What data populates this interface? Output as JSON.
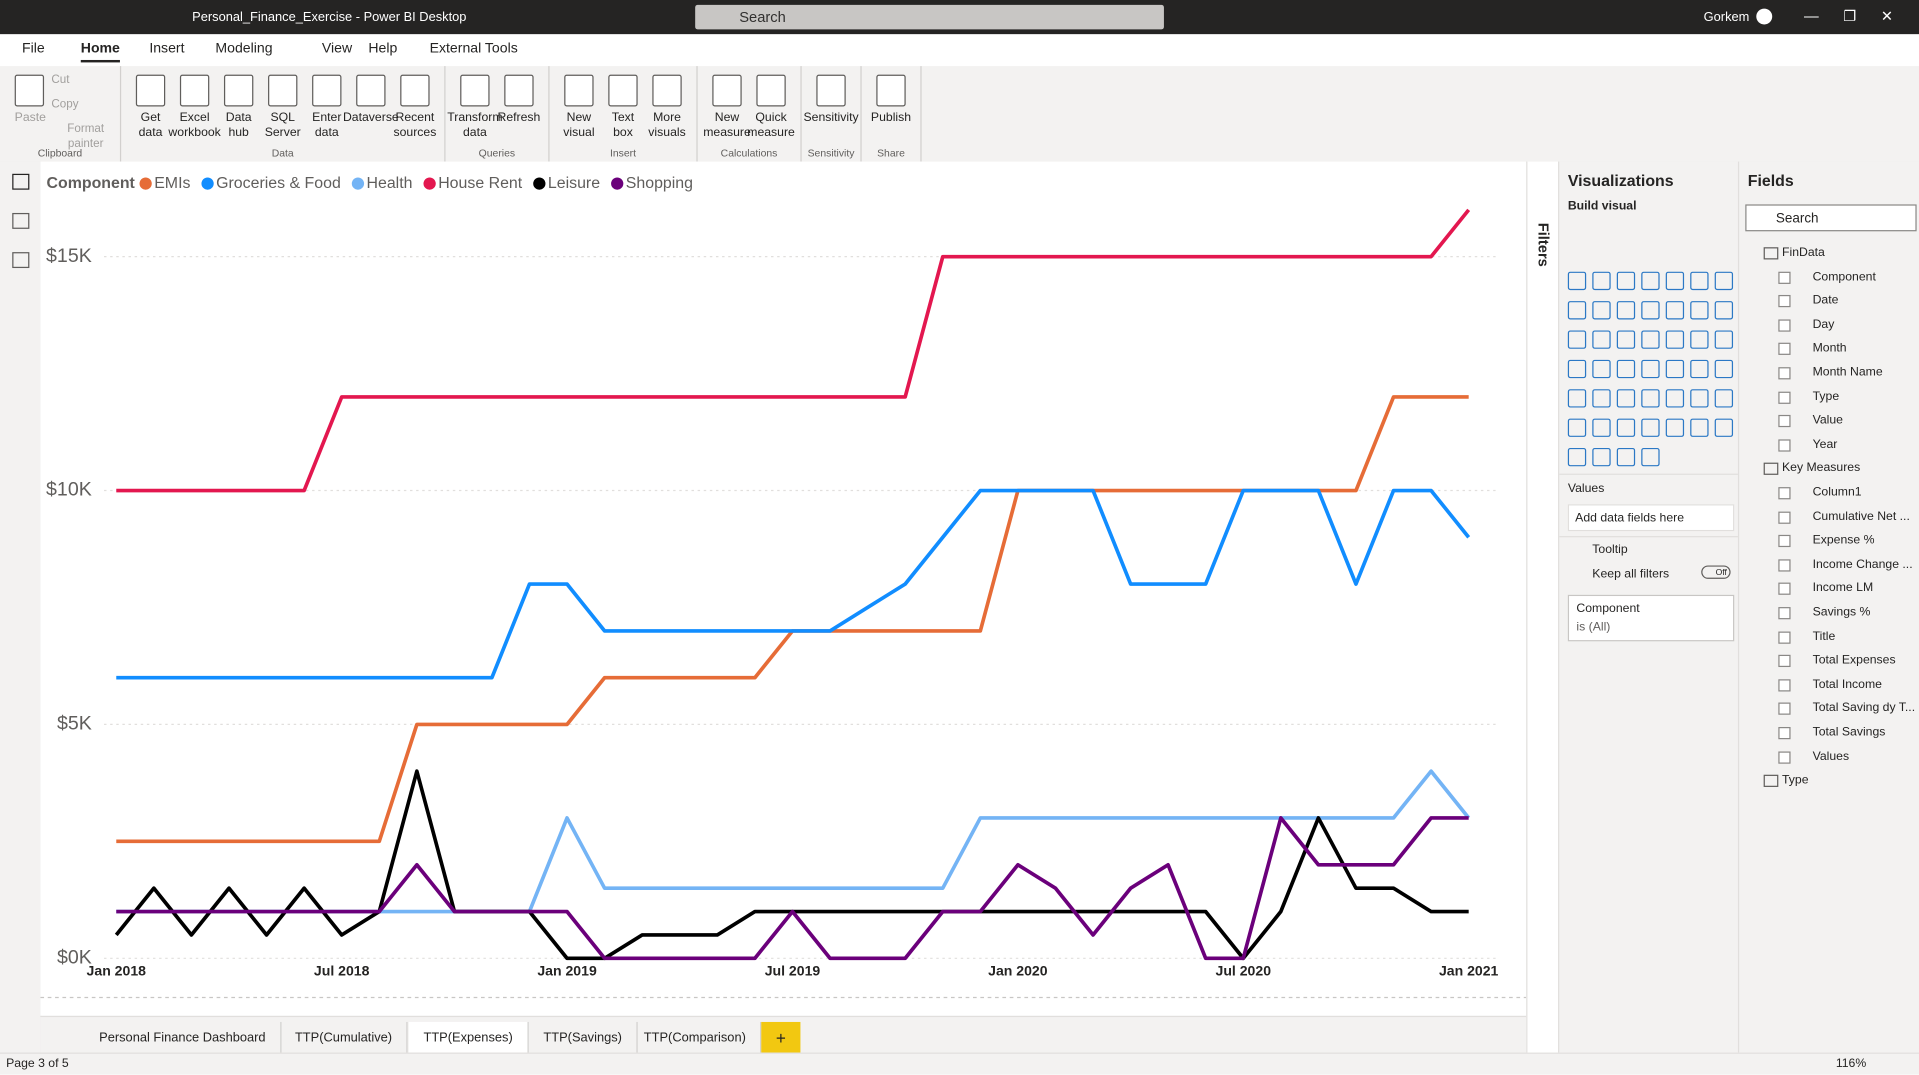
{
  "window": {
    "title": "Personal_Finance_Exercise - Power BI Desktop",
    "search": "Search",
    "user": "Gorkem"
  },
  "menu": [
    "File",
    "Home",
    "Insert",
    "Modeling",
    "View",
    "Help",
    "External Tools"
  ],
  "active_menu": 1,
  "ribbon": [
    {
      "name": "Clipboard",
      "buttons": [
        "Paste",
        "Cut",
        "Copy",
        "Format painter"
      ]
    },
    {
      "name": "Data",
      "buttons": [
        "Get data",
        "Excel workbook",
        "Data hub",
        "SQL Server",
        "Enter data",
        "Dataverse",
        "Recent sources"
      ]
    },
    {
      "name": "Queries",
      "buttons": [
        "Transform data",
        "Refresh"
      ]
    },
    {
      "name": "Insert",
      "buttons": [
        "New visual",
        "Text box",
        "More visuals"
      ]
    },
    {
      "name": "Calculations",
      "buttons": [
        "New measure",
        "Quick measure"
      ]
    },
    {
      "name": "Sensitivity",
      "buttons": [
        "Sensitivity"
      ]
    },
    {
      "name": "Share",
      "buttons": [
        "Publish"
      ]
    }
  ],
  "chart_data": {
    "type": "line",
    "legend_title": "Component",
    "categories": [
      "Jan 2018",
      null,
      null,
      null,
      null,
      null,
      "Jul 2018",
      null,
      null,
      null,
      null,
      null,
      "Jan 2019",
      null,
      null,
      null,
      null,
      null,
      "Jul 2019",
      null,
      null,
      null,
      null,
      null,
      "Jan 2020",
      null,
      null,
      null,
      null,
      null,
      "Jul 2020",
      null,
      null,
      null,
      null,
      null,
      "Jan 2021"
    ],
    "series": [
      {
        "name": "EMIs",
        "color": "#e66c37",
        "values": [
          2500,
          2500,
          2500,
          2500,
          2500,
          2500,
          2500,
          2500,
          5000,
          5000,
          5000,
          5000,
          5000,
          6000,
          6000,
          6000,
          6000,
          6000,
          7000,
          7000,
          7000,
          7000,
          7000,
          7000,
          10000,
          10000,
          10000,
          10000,
          10000,
          10000,
          10000,
          10000,
          10000,
          10000,
          12000,
          12000,
          12000
        ]
      },
      {
        "name": "Groceries & Food",
        "color": "#118dff",
        "values": [
          6000,
          6000,
          6000,
          6000,
          6000,
          6000,
          6000,
          6000,
          6000,
          6000,
          6000,
          8000,
          8000,
          7000,
          7000,
          7000,
          7000,
          7000,
          7000,
          7000,
          7500,
          8000,
          9000,
          10000,
          10000,
          10000,
          10000,
          8000,
          8000,
          8000,
          10000,
          10000,
          10000,
          8000,
          10000,
          10000,
          9000
        ]
      },
      {
        "name": "Health",
        "color": "#74b4f5",
        "values": [
          1000,
          1000,
          1000,
          1000,
          1000,
          1000,
          1000,
          1000,
          1000,
          1000,
          1000,
          1000,
          3000,
          1500,
          1500,
          1500,
          1500,
          1500,
          1500,
          1500,
          1500,
          1500,
          1500,
          3000,
          3000,
          3000,
          3000,
          3000,
          3000,
          3000,
          3000,
          3000,
          3000,
          3000,
          3000,
          4000,
          3000
        ]
      },
      {
        "name": "House Rent",
        "color": "#e3174f",
        "values": [
          10000,
          10000,
          10000,
          10000,
          10000,
          10000,
          12000,
          12000,
          12000,
          12000,
          12000,
          12000,
          12000,
          12000,
          12000,
          12000,
          12000,
          12000,
          12000,
          12000,
          12000,
          12000,
          15000,
          15000,
          15000,
          15000,
          15000,
          15000,
          15000,
          15000,
          15000,
          15000,
          15000,
          15000,
          15000,
          15000,
          16000
        ]
      },
      {
        "name": "Leisure",
        "color": "#000000",
        "values": [
          500,
          1500,
          500,
          1500,
          500,
          1500,
          500,
          1000,
          4000,
          1000,
          1000,
          1000,
          0,
          0,
          500,
          500,
          500,
          1000,
          1000,
          1000,
          1000,
          1000,
          1000,
          1000,
          1000,
          1000,
          1000,
          1000,
          1000,
          1000,
          0,
          1000,
          3000,
          1500,
          1500,
          1000,
          1000
        ]
      },
      {
        "name": "Shopping",
        "color": "#6b007b",
        "values": [
          1000,
          1000,
          1000,
          1000,
          1000,
          1000,
          1000,
          1000,
          2000,
          1000,
          1000,
          1000,
          1000,
          0,
          0,
          0,
          0,
          0,
          1000,
          0,
          0,
          0,
          1000,
          1000,
          2000,
          1500,
          500,
          1500,
          2000,
          0,
          0,
          3000,
          2000,
          2000,
          2000,
          3000,
          3000
        ]
      }
    ],
    "ylim": [
      0,
      16300
    ],
    "yticks": [
      {
        "value": 0,
        "label": "$0K"
      },
      {
        "value": 5000,
        "label": "$5K"
      },
      {
        "value": 10000,
        "label": "$10K"
      },
      {
        "value": 15000,
        "label": "$15K"
      }
    ],
    "grid": true
  },
  "filters": "Filters",
  "visualizations": {
    "title": "Visualizations",
    "build": "Build visual",
    "values": "Values",
    "add": "Add data fields here",
    "tooltip": "Tooltip",
    "keep": "Keep all filters",
    "toggle": "Off",
    "filter_field": "Component",
    "filter_value": "is (All)"
  },
  "fields": {
    "title": "Fields",
    "search": "Search",
    "tables": [
      {
        "name": "FinData",
        "items": [
          "Component",
          "Date",
          "Day",
          "Month",
          "Month Name",
          "Type",
          "Value",
          "Year"
        ]
      },
      {
        "name": "Key Measures",
        "items": [
          "Column1",
          "Cumulative Net ...",
          "Expense %",
          "Income Change ...",
          "Income LM",
          "Savings %",
          "Title",
          "Total Expenses",
          "Total Income",
          "Total Saving dy T...",
          "Total Savings",
          "Values"
        ]
      },
      {
        "name": "Type",
        "items": []
      }
    ]
  },
  "pages": [
    "Personal Finance Dashboard",
    "TTP(Cumulative)",
    "TTP(Expenses)",
    "TTP(Savings)",
    "TTP(Comparison)"
  ],
  "active_page": 2,
  "status": "Page 3 of 5",
  "zoom": "116%"
}
